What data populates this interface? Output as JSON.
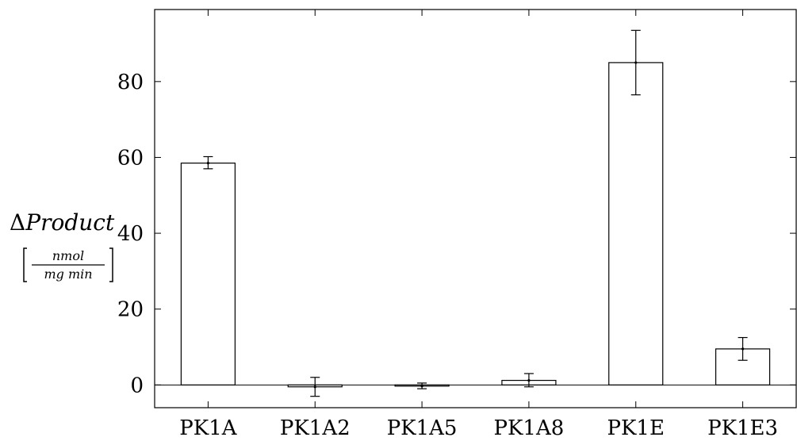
{
  "chart_data": {
    "type": "bar",
    "title": "",
    "xlabel": "",
    "ylabel_symbol": "Δ",
    "ylabel_text": "Product",
    "ylabel_unit_num": "nmol",
    "ylabel_unit_den": "mg min",
    "categories": [
      "PK1A",
      "PK1A2",
      "PK1A5",
      "PK1A8",
      "PK1E",
      "PK1E3"
    ],
    "values": [
      58.5,
      -0.5,
      -0.3,
      1.2,
      85.0,
      9.5
    ],
    "error_low": [
      57.0,
      -3.0,
      -1.0,
      -0.5,
      76.5,
      6.5
    ],
    "error_high": [
      60.2,
      2.0,
      0.5,
      3.0,
      93.5,
      12.5
    ],
    "y_ticks": [
      0,
      20,
      40,
      60,
      80
    ],
    "ylim": [
      -6,
      99
    ],
    "grid": false,
    "legend": "none"
  }
}
